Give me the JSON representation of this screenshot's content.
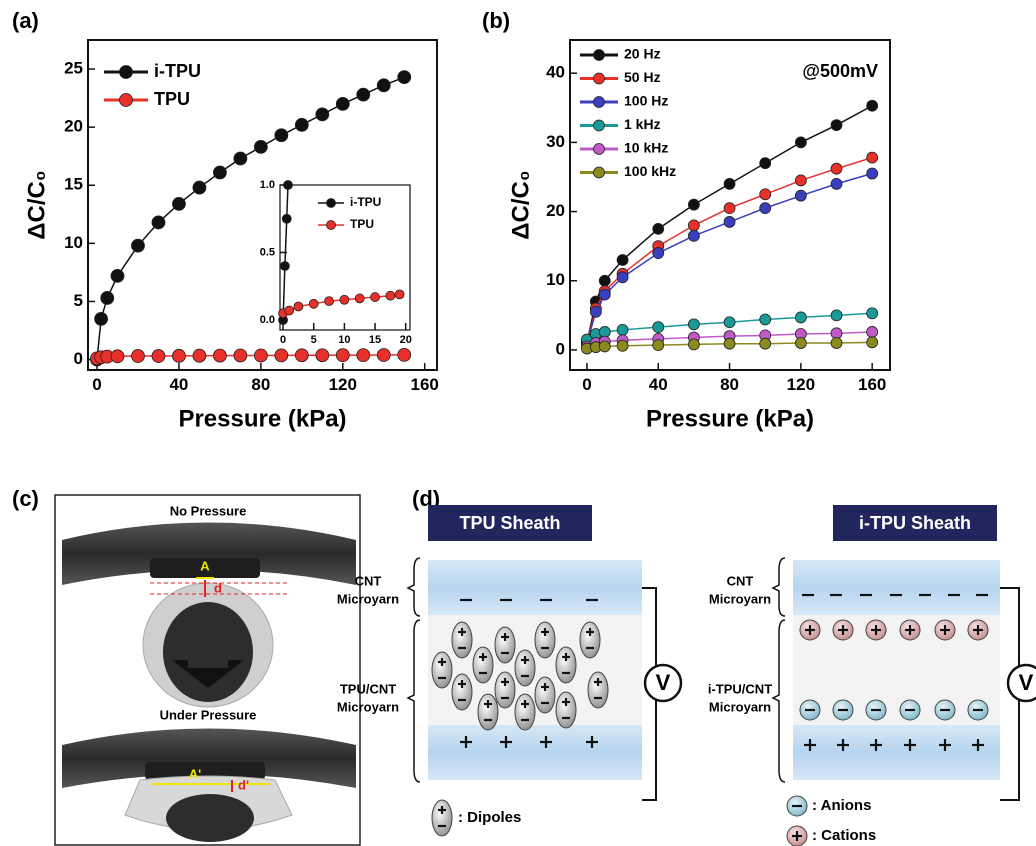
{
  "chart_data": [
    {
      "type": "line",
      "panel_label": "(a)",
      "x_label": "Pressure (kPa)",
      "y_label": "ΔC/C₀",
      "xlim": [
        -4.4,
        166
      ],
      "ylim": [
        -0.9,
        27.5
      ],
      "xticks": [
        0,
        40,
        80,
        120,
        160
      ],
      "yticks": [
        0,
        5,
        10,
        15,
        20,
        25
      ],
      "x": [
        0,
        2,
        5,
        10,
        20,
        30,
        40,
        50,
        60,
        70,
        80,
        90,
        100,
        110,
        120,
        130,
        140,
        150
      ],
      "legend": "upper left",
      "series": [
        {
          "name": "i-TPU",
          "color": "#111111",
          "values": [
            0,
            3.5,
            5.3,
            7.2,
            9.8,
            11.8,
            13.4,
            14.8,
            16.1,
            17.3,
            18.3,
            19.3,
            20.2,
            21.1,
            22.0,
            22.8,
            23.6,
            24.3
          ]
        },
        {
          "name": "TPU",
          "color": "#e8302a",
          "values": [
            0.1,
            0.2,
            0.25,
            0.28,
            0.3,
            0.3,
            0.32,
            0.33,
            0.34,
            0.35,
            0.35,
            0.36,
            0.37,
            0.37,
            0.38,
            0.38,
            0.39,
            0.4
          ]
        }
      ]
    },
    {
      "type": "line",
      "xlim": [
        -0.5,
        20.7
      ],
      "ylim": [
        -0.074,
        1.0
      ],
      "xticks": [
        0,
        5,
        10,
        15,
        20
      ],
      "yticks": [
        {
          "value": 0,
          "label": "0.0"
        },
        {
          "value": 0.5,
          "label": "0.5"
        },
        {
          "value": 1,
          "label": "1.0"
        }
      ],
      "x": [
        0,
        0.3,
        0.6,
        0.8,
        1,
        2.5,
        5,
        7.5,
        10,
        12.5,
        15,
        17.5,
        19
      ],
      "legend": "upper right",
      "series": [
        {
          "name": "i-TPU",
          "color": "#111111",
          "values": [
            0,
            0.4,
            0.75,
            1.0,
            null,
            null,
            null,
            null,
            null,
            null,
            null,
            null,
            null
          ]
        },
        {
          "name": "TPU",
          "color": "#e8302a",
          "values": [
            0.05,
            null,
            null,
            null,
            0.07,
            0.1,
            0.12,
            0.14,
            0.15,
            0.16,
            0.17,
            0.18,
            0.19
          ]
        }
      ]
    },
    {
      "type": "line",
      "panel_label": "(b)",
      "x_label": "Pressure (kPa)",
      "y_label": "ΔC/C₀",
      "annotation": "@500mV",
      "xlim": [
        -9.5,
        170
      ],
      "ylim": [
        -2.9,
        44.8
      ],
      "xticks": [
        0,
        40,
        80,
        120,
        160
      ],
      "yticks": [
        0,
        10,
        20,
        30,
        40
      ],
      "x": [
        0,
        5,
        10,
        20,
        40,
        60,
        80,
        100,
        120,
        140,
        160
      ],
      "legend": "upper left",
      "series": [
        {
          "name": "20 Hz",
          "color": "#111111",
          "values": [
            1,
            7,
            10,
            13,
            17.5,
            21,
            24,
            27,
            30,
            32.5,
            35.3
          ]
        },
        {
          "name": "50 Hz",
          "color": "#e8302a",
          "values": [
            1,
            6,
            8.5,
            11,
            15,
            18,
            20.5,
            22.5,
            24.5,
            26.2,
            27.8
          ]
        },
        {
          "name": "100 Hz",
          "color": "#3a3fc0",
          "values": [
            1,
            5.5,
            8,
            10.5,
            14,
            16.5,
            18.5,
            20.5,
            22.3,
            24,
            25.5
          ]
        },
        {
          "name": "1 kHz",
          "color": "#1a9a96",
          "values": [
            1.5,
            2.3,
            2.6,
            2.9,
            3.3,
            3.7,
            4.0,
            4.4,
            4.7,
            5.0,
            5.3
          ]
        },
        {
          "name": "10 kHz",
          "color": "#c05ac8",
          "values": [
            0.5,
            1.0,
            1.2,
            1.4,
            1.6,
            1.8,
            2.0,
            2.1,
            2.3,
            2.4,
            2.6
          ]
        },
        {
          "name": "100 kHz",
          "color": "#8a8a1e",
          "values": [
            0.2,
            0.4,
            0.5,
            0.6,
            0.7,
            0.8,
            0.9,
            0.9,
            1.0,
            1.0,
            1.1
          ]
        }
      ]
    }
  ],
  "panel_c": {
    "panel_label": "(c)",
    "top_caption": "No Pressure",
    "top_area": "A",
    "top_gap": "d",
    "bottom_caption": "Under Pressure",
    "bottom_area": "A'",
    "bottom_gap": "d'"
  },
  "panel_d": {
    "panel_label": "(d)",
    "left": {
      "title": "TPU Sheath",
      "top_label": [
        "CNT",
        "Microyarn"
      ],
      "middle_label": [
        "TPU/CNT",
        "Microyarn"
      ],
      "source": "V"
    },
    "right": {
      "title": "i-TPU Sheath",
      "top_label": [
        "CNT",
        "Microyarn"
      ],
      "middle_label": [
        "i-TPU/CNT",
        "Microyarn"
      ],
      "source": "V"
    },
    "legend": {
      "dipoles": ": Dipoles",
      "anions": ": Anions",
      "cations": ": Cations"
    }
  }
}
